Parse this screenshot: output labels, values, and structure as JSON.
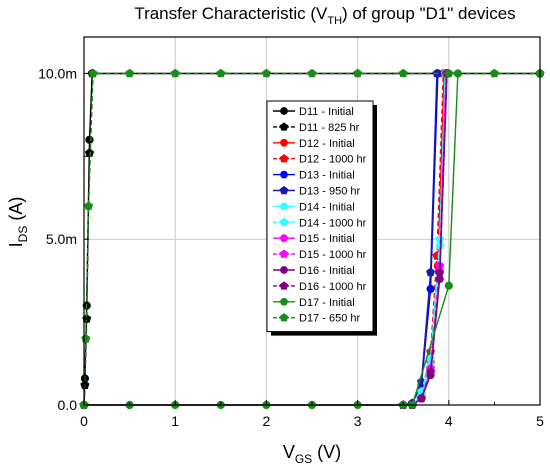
{
  "chart_data": {
    "type": "line",
    "title": {
      "main": "Transfer Characteristic (V",
      "sub": "TH",
      "tail": ") of group \"D1\" devices"
    },
    "xlabel": {
      "main": "V",
      "sub": "GS",
      "tail": " (V)"
    },
    "ylabel": {
      "main": "I",
      "sub": "DS",
      "tail": " (A)"
    },
    "xlim": [
      0,
      5
    ],
    "ylim": [
      0,
      0.0111
    ],
    "x_ticks": [
      {
        "v": 0,
        "label": "0"
      },
      {
        "v": 1,
        "label": "1"
      },
      {
        "v": 2,
        "label": "2"
      },
      {
        "v": 3,
        "label": "3"
      },
      {
        "v": 4,
        "label": "4"
      },
      {
        "v": 5,
        "label": "5"
      }
    ],
    "y_ticks": [
      {
        "v": 0,
        "label": "0.0"
      },
      {
        "v": 0.005,
        "label": "5.0m"
      },
      {
        "v": 0.01,
        "label": "10.0m"
      }
    ],
    "grid": true,
    "legend_position": "center-left",
    "colors": {
      "black": "#000000",
      "red": "#ff0000",
      "blue": "#0000ff",
      "navy": "#1a1aa6",
      "cyan": "#33ffff",
      "magenta": "#ff00ff",
      "purple": "#800080",
      "green": "#1a8c1a"
    },
    "series": [
      {
        "name": "D11 - Initial",
        "color": "#000000",
        "marker": "circle",
        "dashed": false,
        "points": [
          [
            0,
            0
          ],
          [
            0.01,
            0.0008
          ],
          [
            0.03,
            0.003
          ],
          [
            0.06,
            0.008
          ],
          [
            0.09,
            0.01
          ],
          [
            5,
            0.01
          ]
        ]
      },
      {
        "name": "D11 - 825 hr",
        "color": "#000000",
        "marker": "pentagon",
        "dashed": true,
        "points": [
          [
            0,
            0
          ],
          [
            0.01,
            0.0006
          ],
          [
            0.03,
            0.0026
          ],
          [
            0.06,
            0.0076
          ],
          [
            0.09,
            0.01
          ],
          [
            5,
            0.01
          ]
        ]
      },
      {
        "name": "D12 - Initial",
        "color": "#ff0000",
        "marker": "circle",
        "dashed": false,
        "points": [
          [
            0,
            0
          ],
          [
            3.5,
            0
          ],
          [
            3.6,
            0
          ],
          [
            3.7,
            0.0002
          ],
          [
            3.8,
            0.0013
          ],
          [
            3.88,
            0.0042
          ],
          [
            3.95,
            0.01
          ]
        ]
      },
      {
        "name": "D12 - 1000 hr",
        "color": "#ff0000",
        "marker": "pentagon",
        "dashed": true,
        "points": [
          [
            0,
            0
          ],
          [
            3.5,
            0
          ],
          [
            3.6,
            0
          ],
          [
            3.7,
            0.0003
          ],
          [
            3.8,
            0.0016
          ],
          [
            3.87,
            0.0045
          ],
          [
            3.94,
            0.01
          ]
        ]
      },
      {
        "name": "D13 - Initial",
        "color": "#0000ff",
        "marker": "circle",
        "dashed": false,
        "points": [
          [
            0,
            0
          ],
          [
            3.5,
            0
          ],
          [
            3.6,
            5e-05
          ],
          [
            3.7,
            0.0006
          ],
          [
            3.8,
            0.0035
          ],
          [
            3.88,
            0.01
          ]
        ]
      },
      {
        "name": "D13 - 950 hr",
        "color": "#1a1aa6",
        "marker": "pentagon",
        "dashed": false,
        "points": [
          [
            0,
            0
          ],
          [
            3.5,
            0
          ],
          [
            3.6,
            5e-05
          ],
          [
            3.7,
            0.0007
          ],
          [
            3.8,
            0.004
          ],
          [
            3.87,
            0.01
          ]
        ]
      },
      {
        "name": "D14 - Initial",
        "color": "#33ffff",
        "marker": "circle",
        "dashed": false,
        "points": [
          [
            0,
            0
          ],
          [
            3.5,
            0
          ],
          [
            3.6,
            0
          ],
          [
            3.7,
            0.0003
          ],
          [
            3.8,
            0.0012
          ],
          [
            3.9,
            0.0048
          ],
          [
            3.96,
            0.01
          ]
        ]
      },
      {
        "name": "D14 - 1000 hr",
        "color": "#33ffff",
        "marker": "pentagon",
        "dashed": true,
        "points": [
          [
            0,
            0
          ],
          [
            3.5,
            0
          ],
          [
            3.6,
            0
          ],
          [
            3.7,
            0.0004
          ],
          [
            3.8,
            0.0014
          ],
          [
            3.9,
            0.005
          ],
          [
            3.96,
            0.01
          ]
        ]
      },
      {
        "name": "D15 - Initial",
        "color": "#ff00ff",
        "marker": "circle",
        "dashed": false,
        "points": [
          [
            0,
            0
          ],
          [
            3.5,
            0
          ],
          [
            3.6,
            0
          ],
          [
            3.7,
            0.0002
          ],
          [
            3.8,
            0.001
          ],
          [
            3.9,
            0.004
          ],
          [
            3.97,
            0.01
          ]
        ]
      },
      {
        "name": "D15 - 1000 hr",
        "color": "#ff00ff",
        "marker": "pentagon",
        "dashed": true,
        "points": [
          [
            0,
            0
          ],
          [
            3.5,
            0
          ],
          [
            3.6,
            0
          ],
          [
            3.7,
            0.0002
          ],
          [
            3.8,
            0.0011
          ],
          [
            3.9,
            0.0042
          ],
          [
            3.97,
            0.01
          ]
        ]
      },
      {
        "name": "D16 - Initial",
        "color": "#800080",
        "marker": "circle",
        "dashed": false,
        "points": [
          [
            0,
            0
          ],
          [
            3.5,
            0
          ],
          [
            3.6,
            0
          ],
          [
            3.7,
            0.0002
          ],
          [
            3.8,
            0.0009
          ],
          [
            3.9,
            0.0038
          ],
          [
            3.98,
            0.01
          ]
        ]
      },
      {
        "name": "D16 - 1000 hr",
        "color": "#800080",
        "marker": "pentagon",
        "dashed": true,
        "points": [
          [
            0,
            0
          ],
          [
            3.5,
            0
          ],
          [
            3.6,
            0
          ],
          [
            3.7,
            0.0002
          ],
          [
            3.8,
            0.001
          ],
          [
            3.9,
            0.004
          ],
          [
            3.98,
            0.01
          ]
        ]
      },
      {
        "name": "D17 - Initial",
        "color": "#1a8c1a",
        "marker": "circle",
        "dashed": false,
        "points": [
          [
            0,
            0
          ],
          [
            0.5,
            0
          ],
          [
            1,
            0
          ],
          [
            1.5,
            0
          ],
          [
            2,
            0
          ],
          [
            2.5,
            0
          ],
          [
            3,
            0
          ],
          [
            3.5,
            0
          ],
          [
            3.6,
            0
          ],
          [
            4,
            0.0036
          ],
          [
            4.1,
            0.01
          ]
        ]
      },
      {
        "name": "D17 - 650 hr",
        "color": "#1a8c1a",
        "marker": "pentagon",
        "dashed": true,
        "points": [
          [
            0,
            0
          ],
          [
            0.02,
            0.002
          ],
          [
            0.05,
            0.006
          ],
          [
            0.1,
            0.01
          ],
          [
            0.5,
            0.01
          ],
          [
            1,
            0.01
          ],
          [
            1.5,
            0.01
          ],
          [
            2,
            0.01
          ],
          [
            2.5,
            0.01
          ],
          [
            3,
            0.01
          ],
          [
            3.5,
            0.01
          ],
          [
            4,
            0.01
          ],
          [
            4.5,
            0.01
          ],
          [
            5,
            0.01
          ]
        ]
      }
    ]
  }
}
